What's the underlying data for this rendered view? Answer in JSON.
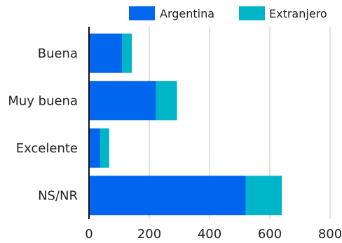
{
  "chart_data": {
    "type": "bar",
    "orientation": "horizontal",
    "stacked": true,
    "categories": [
      "Buena",
      "Muy buena",
      "Excelente",
      "NS/NR"
    ],
    "series": [
      {
        "name": "Argentina",
        "values": [
          110,
          222,
          37,
          520
        ],
        "color": "#0066ee"
      },
      {
        "name": "Extranjero",
        "values": [
          32,
          70,
          30,
          120
        ],
        "color": "#00b5c8"
      }
    ],
    "xlim": [
      0,
      800
    ],
    "xticks": [
      0,
      200,
      400,
      600,
      800
    ],
    "tick_labels": [
      "0",
      "200",
      "400",
      "600",
      "800"
    ],
    "grid": true,
    "legend_position": "top-right",
    "title": "",
    "xlabel": "",
    "ylabel": ""
  }
}
